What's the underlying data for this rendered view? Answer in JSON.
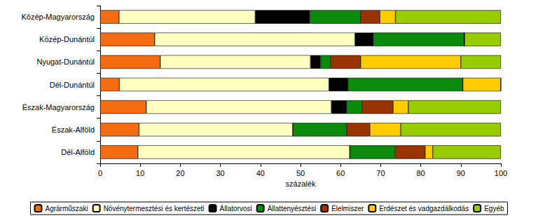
{
  "chart_data": {
    "type": "bar",
    "orientation": "horizontal",
    "stacked": true,
    "grid": false,
    "legend": "bottom",
    "data_labels": false,
    "xlabel": "százalék",
    "categories": [
      "Közép-Magyarország",
      "Közép-Dunántúl",
      "Nyugat-Dunántúl",
      "Dél-Dunántúl",
      "Észak-Magyarország",
      "Észak-Alföld",
      "Dél-Alföld"
    ],
    "xlim": [
      0,
      100
    ],
    "xticks": [
      0,
      10,
      20,
      30,
      40,
      50,
      60,
      70,
      80,
      90,
      100
    ],
    "series": [
      {
        "name": "Agrárműszaki",
        "color": "#f36c12",
        "values": [
          4.7,
          13.6,
          15,
          4.8,
          11.5,
          9.7,
          9.4
        ]
      },
      {
        "name": "Növénytermesztési és kertészeti",
        "color": "#ffffc0",
        "values": [
          34,
          50,
          37.5,
          52.3,
          46.2,
          38.4,
          52.9
        ]
      },
      {
        "name": "Állatorvosi",
        "color": "#000000",
        "values": [
          13.6,
          4.6,
          2.5,
          4.8,
          3.8,
          0,
          0
        ]
      },
      {
        "name": "Állattenyésztési",
        "color": "#0b8a0b",
        "values": [
          12.7,
          22.7,
          2.5,
          28.6,
          3.9,
          13.4,
          11.3
        ]
      },
      {
        "name": "Élelmiszer",
        "color": "#993300",
        "values": [
          4.8,
          0,
          7.5,
          0,
          7.7,
          5.8,
          7.5
        ]
      },
      {
        "name": "Erdészet és vadgazdálkodás",
        "color": "#ffcc00",
        "values": [
          3.9,
          0,
          25,
          9.5,
          3.8,
          7.7,
          1.9
        ]
      },
      {
        "name": "Egyéb",
        "color": "#99cc00",
        "values": [
          26.3,
          9.1,
          10,
          0,
          23.1,
          25,
          17
        ]
      }
    ]
  }
}
